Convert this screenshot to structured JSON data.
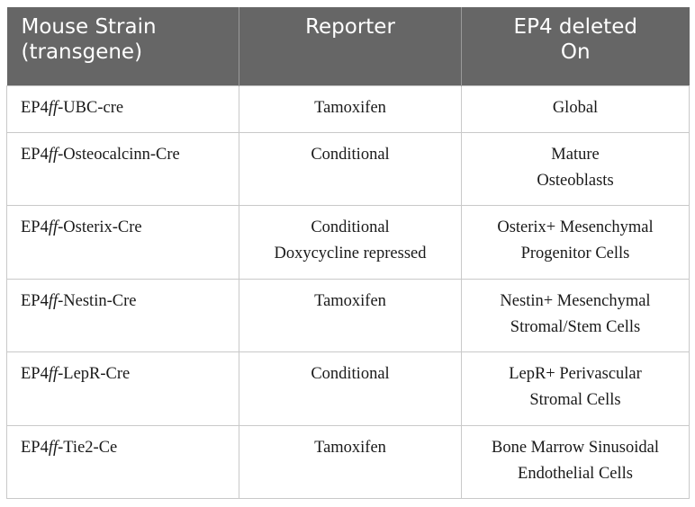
{
  "table": {
    "headers": [
      {
        "line1": "Mouse Strain",
        "line2": "(transgene)"
      },
      {
        "line1": "Reporter",
        "line2": ""
      },
      {
        "line1": "EP4 deleted",
        "line2": "On"
      }
    ],
    "rows": [
      {
        "strain_prefix": "EP4",
        "strain_italic": "ff",
        "strain_suffix": "-UBC-cre",
        "reporter": [
          "Tamoxifen"
        ],
        "deleted_on": [
          "Global"
        ]
      },
      {
        "strain_prefix": "EP4",
        "strain_italic": "ff",
        "strain_suffix": "-Osteocalcinn-Cre",
        "reporter": [
          "Conditional"
        ],
        "deleted_on": [
          "Mature",
          "Osteoblasts"
        ]
      },
      {
        "strain_prefix": "EP4",
        "strain_italic": "ff",
        "strain_suffix": "-Osterix-Cre",
        "reporter": [
          "Conditional",
          "Doxycycline repressed"
        ],
        "deleted_on": [
          "Osterix+ Mesenchymal",
          "Progenitor Cells"
        ]
      },
      {
        "strain_prefix": "EP4",
        "strain_italic": "ff",
        "strain_suffix": "-Nestin-Cre",
        "reporter": [
          "Tamoxifen"
        ],
        "deleted_on": [
          "Nestin+ Mesenchymal",
          "Stromal/Stem Cells"
        ]
      },
      {
        "strain_prefix": "EP4",
        "strain_italic": "ff",
        "strain_suffix": "-LepR-Cre",
        "reporter": [
          "Conditional"
        ],
        "deleted_on": [
          "LepR+ Perivascular",
          "Stromal Cells"
        ]
      },
      {
        "strain_prefix": "EP4",
        "strain_italic": "ff",
        "strain_suffix": "-Tie2-Ce",
        "reporter": [
          "Tamoxifen"
        ],
        "deleted_on": [
          "Bone Marrow Sinusoidal",
          "Endothelial Cells"
        ]
      }
    ]
  },
  "colors": {
    "header_bg": "#666666",
    "header_text": "#ffffff",
    "border": "#c9c9c9"
  }
}
